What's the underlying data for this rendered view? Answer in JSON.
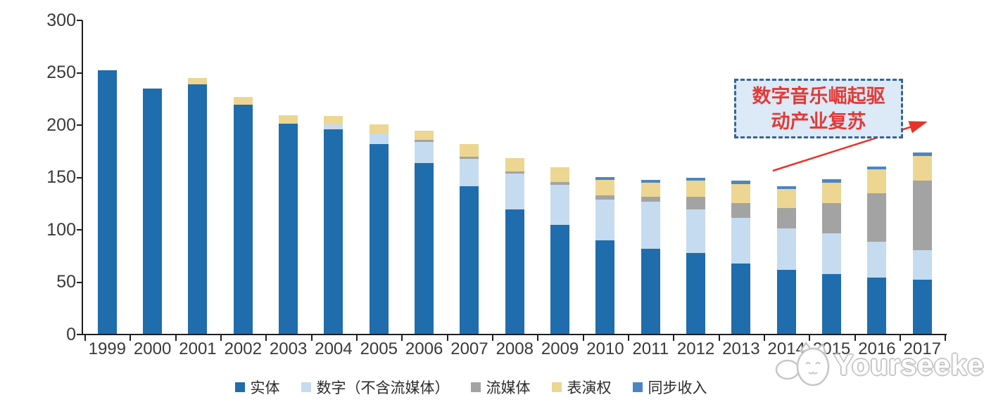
{
  "chart_data": {
    "type": "bar",
    "stacked": true,
    "title": "",
    "xlabel": "",
    "ylabel": "",
    "ylim": [
      0,
      300
    ],
    "yticks": [
      0,
      50,
      100,
      150,
      200,
      250,
      300
    ],
    "grid": false,
    "legend_position": "bottom",
    "categories": [
      "1999",
      "2000",
      "2001",
      "2002",
      "2003",
      "2004",
      "2005",
      "2006",
      "2007",
      "2008",
      "2009",
      "2010",
      "2011",
      "2012",
      "2013",
      "2014",
      "2015",
      "2016",
      "2017"
    ],
    "series": [
      {
        "name": "实体",
        "color": "#1f6dad",
        "values": [
          252,
          234,
          238,
          219,
          201,
          195,
          181,
          163,
          141,
          119,
          104,
          89,
          81,
          77,
          67,
          61,
          57,
          54,
          52
        ]
      },
      {
        "name": "数字（不含流媒体）",
        "color": "#c5dbef",
        "values": [
          0,
          0,
          0,
          0,
          0,
          5,
          10,
          20,
          26,
          34,
          38,
          39,
          45,
          42,
          44,
          40,
          39,
          34,
          28
        ]
      },
      {
        "name": "流媒体",
        "color": "#a3a3a3",
        "values": [
          0,
          0,
          0,
          0,
          0,
          0,
          0,
          2,
          2,
          2,
          3,
          4,
          5,
          12,
          14,
          19,
          29,
          46,
          66
        ]
      },
      {
        "name": "表演权",
        "color": "#ecd691",
        "values": [
          0,
          0,
          6,
          7,
          8,
          8,
          9,
          9,
          12,
          13,
          14,
          15,
          13,
          15,
          18,
          18,
          19,
          23,
          24
        ]
      },
      {
        "name": "同步收入",
        "color": "#4c86c2",
        "values": [
          0,
          0,
          0,
          0,
          0,
          0,
          0,
          0,
          0,
          0,
          0,
          3,
          3,
          3,
          3,
          3,
          4,
          3,
          3
        ]
      }
    ]
  },
  "annotation": {
    "line1": "数字音乐崛起驱",
    "line2": "动产业复苏",
    "text_color": "#e23a36",
    "box_fill": "#dce9f7",
    "box_border": "#3a648f",
    "arrow_color": "#e8332a"
  },
  "watermark": {
    "brand": "Yourseeker",
    "logo": "cat-logo"
  },
  "colors": {
    "axis": "#1f1f1f",
    "axis_text": "#3a3a3a",
    "background": "#ffffff"
  }
}
